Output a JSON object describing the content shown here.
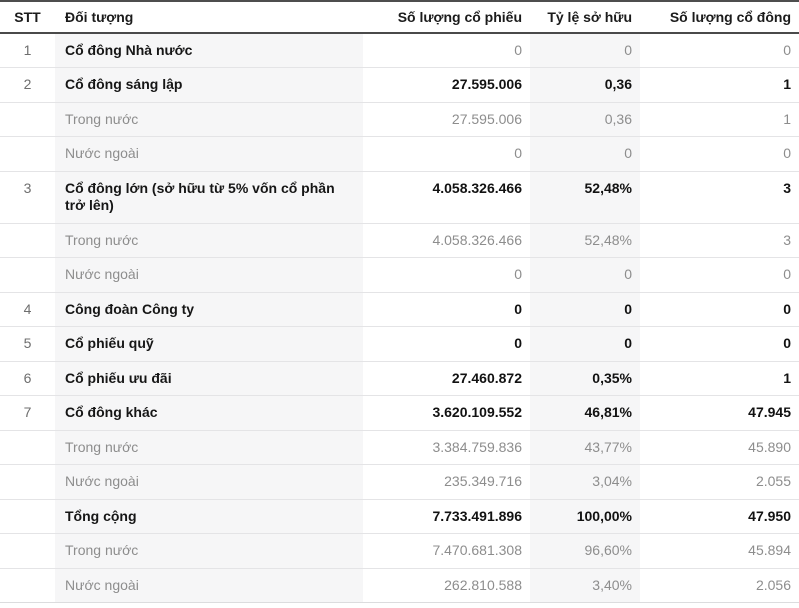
{
  "table": {
    "columns": [
      {
        "key": "stt",
        "label": "STT"
      },
      {
        "key": "label",
        "label": "Đối tượng"
      },
      {
        "key": "shares",
        "label": "Số lượng cổ phiếu"
      },
      {
        "key": "ratio",
        "label": "Tỷ lệ sở hữu"
      },
      {
        "key": "holders",
        "label": "Số lượng cổ đông"
      }
    ],
    "rows": [
      {
        "stt": "1",
        "label": "Cổ đông Nhà nước",
        "shares": "0",
        "ratio": "0",
        "holders": "0",
        "emphasis": "label-only"
      },
      {
        "stt": "2",
        "label": "Cổ đông sáng lập",
        "shares": "27.595.006",
        "ratio": "0,36",
        "holders": "1",
        "emphasis": "bold"
      },
      {
        "stt": "",
        "label": "Trong nước",
        "shares": "27.595.006",
        "ratio": "0,36",
        "holders": "1",
        "emphasis": "muted"
      },
      {
        "stt": "",
        "label": "Nước ngoài",
        "shares": "0",
        "ratio": "0",
        "holders": "0",
        "emphasis": "muted"
      },
      {
        "stt": "3",
        "label": "Cổ đông lớn (sở hữu từ 5% vốn cổ phần trở lên)",
        "shares": "4.058.326.466",
        "ratio": "52,48%",
        "holders": "3",
        "emphasis": "bold"
      },
      {
        "stt": "",
        "label": "Trong nước",
        "shares": "4.058.326.466",
        "ratio": "52,48%",
        "holders": "3",
        "emphasis": "muted"
      },
      {
        "stt": "",
        "label": "Nước ngoài",
        "shares": "0",
        "ratio": "0",
        "holders": "0",
        "emphasis": "muted"
      },
      {
        "stt": "4",
        "label": "Công đoàn Công ty",
        "shares": "0",
        "ratio": "0",
        "holders": "0",
        "emphasis": "bold"
      },
      {
        "stt": "5",
        "label": "Cổ phiếu quỹ",
        "shares": "0",
        "ratio": "0",
        "holders": "0",
        "emphasis": "bold"
      },
      {
        "stt": "6",
        "label": "Cổ phiếu ưu đãi",
        "shares": "27.460.872",
        "ratio": "0,35%",
        "holders": "1",
        "emphasis": "bold"
      },
      {
        "stt": "7",
        "label": "Cổ đông khác",
        "shares": "3.620.109.552",
        "ratio": "46,81%",
        "holders": "47.945",
        "emphasis": "bold"
      },
      {
        "stt": "",
        "label": "Trong nước",
        "shares": "3.384.759.836",
        "ratio": "43,77%",
        "holders": "45.890",
        "emphasis": "muted"
      },
      {
        "stt": "",
        "label": "Nước ngoài",
        "shares": "235.349.716",
        "ratio": "3,04%",
        "holders": "2.055",
        "emphasis": "muted"
      },
      {
        "stt": "",
        "label": "Tổng cộng",
        "shares": "7.733.491.896",
        "ratio": "100,00%",
        "holders": "47.950",
        "emphasis": "bold"
      },
      {
        "stt": "",
        "label": "Trong nước",
        "shares": "7.470.681.308",
        "ratio": "96,60%",
        "holders": "45.894",
        "emphasis": "muted"
      },
      {
        "stt": "",
        "label": "Nước ngoài",
        "shares": "262.810.588",
        "ratio": "3,40%",
        "holders": "2.056",
        "emphasis": "muted"
      }
    ]
  }
}
